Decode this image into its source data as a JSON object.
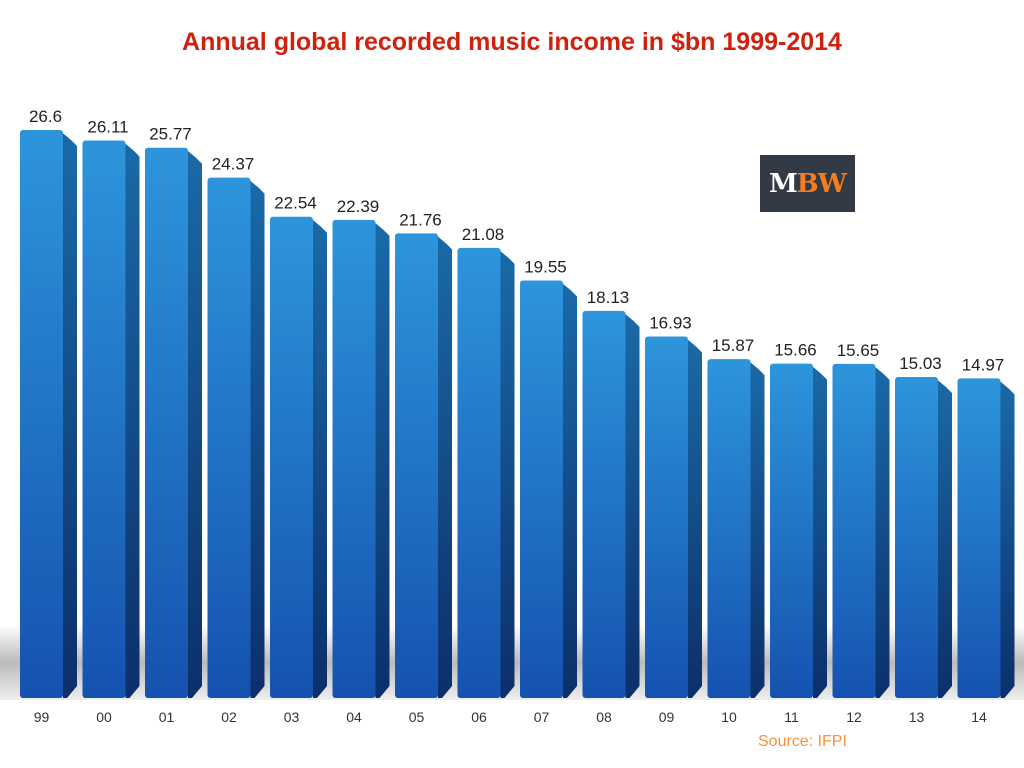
{
  "chart_data": {
    "type": "bar",
    "title": "Annual global recorded music income in $bn 1999-2014",
    "categories": [
      "99",
      "00",
      "01",
      "02",
      "03",
      "04",
      "05",
      "06",
      "07",
      "08",
      "09",
      "10",
      "11",
      "12",
      "13",
      "14"
    ],
    "values": [
      26.6,
      26.11,
      25.77,
      24.37,
      22.54,
      22.39,
      21.76,
      21.08,
      19.55,
      18.13,
      16.93,
      15.87,
      15.66,
      15.65,
      15.03,
      14.97
    ],
    "value_labels": [
      "26.6",
      "26.11",
      "25.77",
      "24.37",
      "22.54",
      "22.39",
      "21.76",
      "21.08",
      "19.55",
      "18.13",
      "16.93",
      "15.87",
      "15.66",
      "15.65",
      "15.03",
      "14.97"
    ],
    "xlabel": "",
    "ylabel": "",
    "ylim": [
      0,
      26.6
    ],
    "grid": false,
    "bar_color": "#1f7fd0",
    "source": "Source: IFPI"
  },
  "logo": {
    "text_white": "M",
    "text_orange": "BW"
  },
  "colors": {
    "title": "#d0210f",
    "source": "#f3943a",
    "logo_bg": "#323a45",
    "logo_accent": "#f47d20"
  }
}
